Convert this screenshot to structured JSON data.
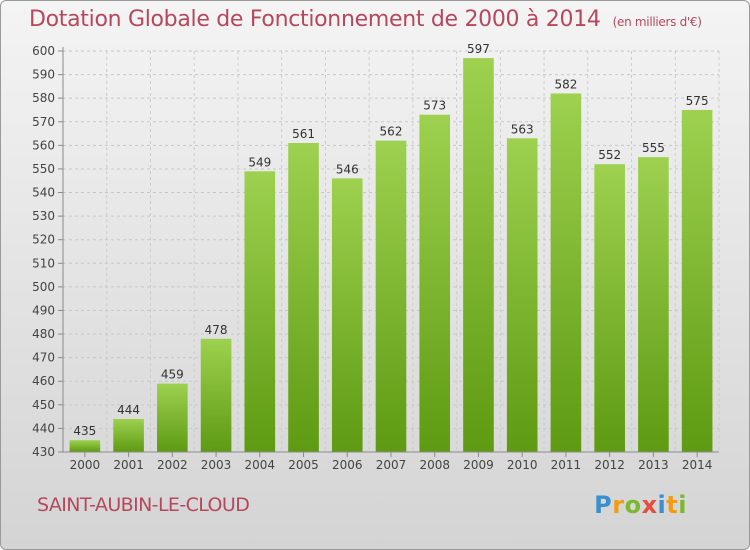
{
  "title": "Dotation Globale de Fonctionnement de 2000 à 2014",
  "unit_note": "(en milliers d'€)",
  "commune": "SAINT-AUBIN-LE-CLOUD",
  "brand": {
    "name": "Proxiti",
    "letters": [
      {
        "char": "P",
        "color": "#3a8fd1"
      },
      {
        "char": "r",
        "color": "#f39c12"
      },
      {
        "char": "o",
        "color": "#7cb82f"
      },
      {
        "char": "x",
        "color": "#e74c3c"
      },
      {
        "char": "i",
        "color": "#3a8fd1"
      },
      {
        "char": "t",
        "color": "#f39c12"
      },
      {
        "char": "i",
        "color": "#7cb82f"
      }
    ]
  },
  "colors": {
    "bar_top": "#9dd14f",
    "bar_bottom": "#5e9a12",
    "text": "#b5485d"
  },
  "chart_data": {
    "type": "bar",
    "title": "Dotation Globale de Fonctionnement de 2000 à 2014",
    "xlabel": "",
    "ylabel": "",
    "categories": [
      "2000",
      "2001",
      "2002",
      "2003",
      "2004",
      "2005",
      "2006",
      "2007",
      "2008",
      "2009",
      "2010",
      "2011",
      "2012",
      "2013",
      "2014"
    ],
    "values": [
      435,
      444,
      459,
      478,
      549,
      561,
      546,
      562,
      573,
      597,
      563,
      582,
      552,
      555,
      575
    ],
    "ylim": [
      430,
      600
    ],
    "yticks": [
      430,
      440,
      450,
      460,
      470,
      480,
      490,
      500,
      510,
      520,
      530,
      540,
      550,
      560,
      570,
      580,
      590,
      600
    ],
    "grid": true,
    "data_labels": true
  }
}
